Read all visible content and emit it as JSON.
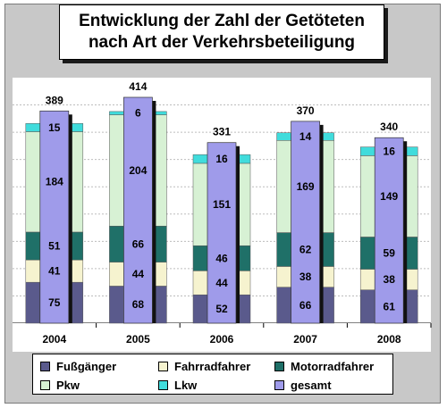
{
  "title": {
    "line1": "Entwicklung der Zahl der Getöteten",
    "line2": "nach Art der Verkehrsbeteiligung"
  },
  "chart_data": {
    "type": "bar",
    "categories": [
      "2004",
      "2005",
      "2006",
      "2007",
      "2008"
    ],
    "ylim": [
      0,
      450
    ],
    "grid": true,
    "legend_position": "bottom",
    "stacked_series": [
      {
        "name": "Fußgänger",
        "color": "#5a5a8c",
        "values": [
          75,
          68,
          52,
          66,
          61
        ]
      },
      {
        "name": "Fahrradfahrer",
        "color": "#f6f3cf",
        "values": [
          41,
          44,
          44,
          38,
          38
        ]
      },
      {
        "name": "Motorradfahrer",
        "color": "#1f7068",
        "values": [
          51,
          66,
          46,
          62,
          59
        ]
      },
      {
        "name": "Pkw",
        "color": "#d7f1d4",
        "values": [
          184,
          204,
          151,
          169,
          149
        ]
      },
      {
        "name": "Lkw",
        "color": "#40dcdc",
        "values": [
          15,
          6,
          16,
          14,
          16
        ]
      }
    ],
    "total_series": {
      "name": "gesamt",
      "color": "#9f9bea",
      "values": [
        389,
        414,
        331,
        370,
        340
      ]
    }
  }
}
